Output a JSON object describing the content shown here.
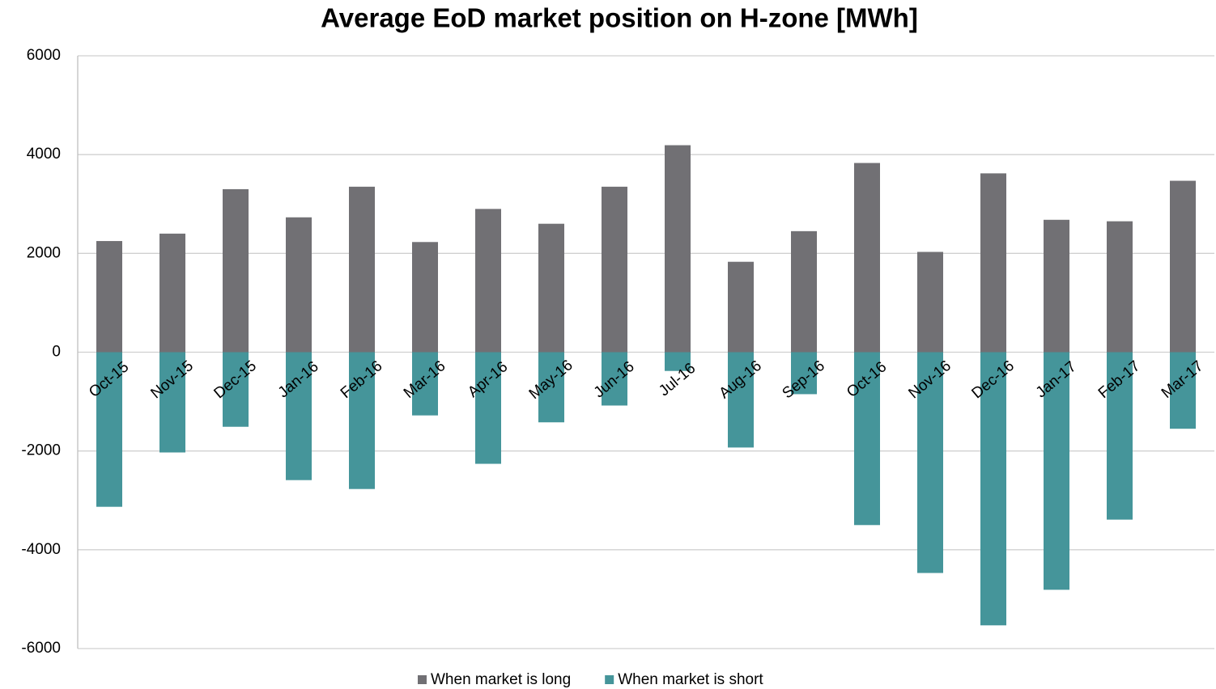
{
  "chart_data": {
    "type": "bar",
    "stacked": true,
    "title": "Average EoD market position on H-zone [MWh]",
    "categories": [
      "Oct-15",
      "Nov-15",
      "Dec-15",
      "Jan-16",
      "Feb-16",
      "Mar-16",
      "Apr-16",
      "May-16",
      "Jun-16",
      "Jul-16",
      "Aug-16",
      "Sep-16",
      "Oct-16",
      "Nov-16",
      "Dec-16",
      "Jan-17",
      "Feb-17",
      "Mar-17"
    ],
    "series": [
      {
        "name": "When market is long",
        "color": "#717074",
        "values": [
          2250,
          2400,
          3300,
          2730,
          3350,
          2230,
          2900,
          2600,
          3350,
          4190,
          1830,
          2450,
          3830,
          2030,
          3620,
          2680,
          2650,
          3470
        ]
      },
      {
        "name": "When market is short",
        "color": "#45959a",
        "values": [
          -3130,
          -2030,
          -1510,
          -2590,
          -2770,
          -1280,
          -2260,
          -1420,
          -1080,
          -380,
          -1930,
          -850,
          -3500,
          -4470,
          -5530,
          -4810,
          -3390,
          -1550
        ]
      }
    ],
    "ylim": [
      -6000,
      6000
    ],
    "yticks": [
      -6000,
      -4000,
      -2000,
      0,
      2000,
      4000,
      6000
    ],
    "grid": true,
    "legend": "bottom"
  }
}
